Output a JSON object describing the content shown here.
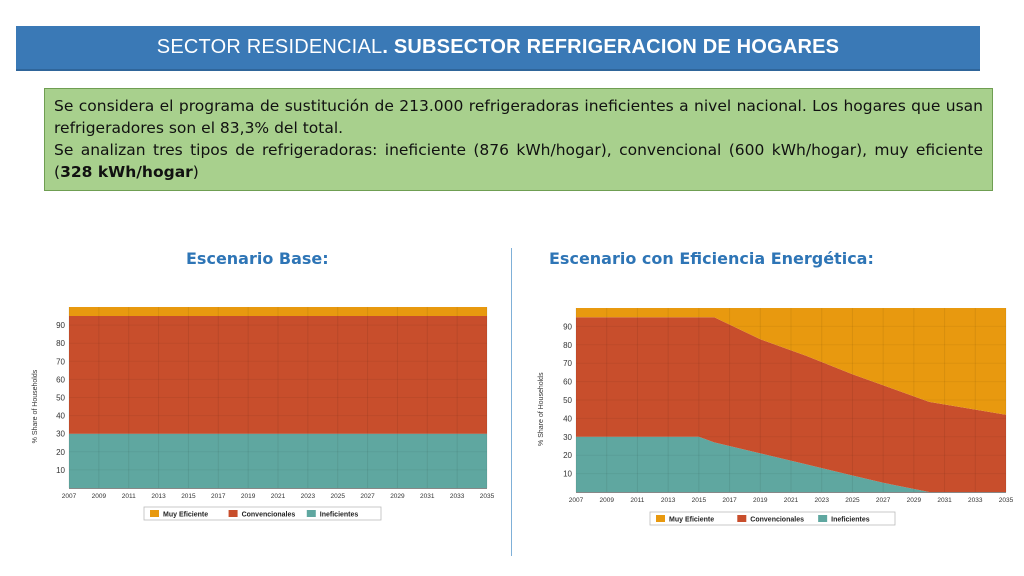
{
  "title": {
    "normal": "SECTOR RESIDENCIAL",
    "bold": ". SUBSECTOR REFRIGERACION DE HOGARES"
  },
  "info": {
    "p1": "Se considera el programa de sustitución de 213.000 refrigeradoras ineficientes a nivel nacional. Los hogares que usan refrigeradores son el 83,3% del total.",
    "p2_pre": "Se analizan tres tipos de refrigeradoras: ineficiente (876 kWh/hogar), convencional (600 kWh/hogar), muy eficiente (",
    "p2_bold": "328 kWh/hogar",
    "p2_post": ")"
  },
  "colors": {
    "muy_eficiente": "#e8990f",
    "convencionales": "#c84e2c",
    "ineficientes": "#5fa7a0",
    "title_bar": "#3a79b6",
    "info_box": "#a8d08d",
    "heading": "#2e75b6"
  },
  "chart_data": [
    {
      "type": "area",
      "title": "Escenario Base:",
      "ylabel": "% Share of Households",
      "xlabel": "",
      "x_ticks": [
        "2007",
        "2009",
        "2011",
        "2013",
        "2015",
        "2017",
        "2019",
        "2021",
        "2023",
        "2025",
        "2027",
        "2029",
        "2031",
        "2033",
        "2035"
      ],
      "y_ticks": [
        "10",
        "20",
        "30",
        "40",
        "50",
        "60",
        "70",
        "80",
        "90"
      ],
      "xlim": [
        2007,
        2035
      ],
      "ylim": [
        0,
        100
      ],
      "grid": true,
      "legend": "bottom",
      "series": [
        {
          "name": "Ineficientes",
          "color": "#5fa7a0",
          "x": [
            2007,
            2035
          ],
          "values": [
            30,
            30
          ]
        },
        {
          "name": "Convencionales",
          "color": "#c84e2c",
          "x": [
            2007,
            2035
          ],
          "values": [
            65,
            65
          ]
        },
        {
          "name": "Muy Eficiente",
          "color": "#e8990f",
          "x": [
            2007,
            2035
          ],
          "values": [
            5,
            5
          ]
        }
      ]
    },
    {
      "type": "area",
      "title": "Escenario con Eficiencia Energética:",
      "ylabel": "% Share of Households",
      "xlabel": "",
      "x_ticks": [
        "2007",
        "2009",
        "2011",
        "2013",
        "2015",
        "2017",
        "2019",
        "2021",
        "2023",
        "2025",
        "2027",
        "2029",
        "2031",
        "2033",
        "2035"
      ],
      "y_ticks": [
        "10",
        "20",
        "30",
        "40",
        "50",
        "60",
        "70",
        "80",
        "90"
      ],
      "xlim": [
        2007,
        2035
      ],
      "ylim": [
        0,
        100
      ],
      "grid": true,
      "legend": "bottom",
      "series": [
        {
          "name": "Ineficientes",
          "color": "#5fa7a0",
          "x": [
            2007,
            2015,
            2016,
            2019,
            2022,
            2025,
            2027,
            2030,
            2035
          ],
          "values": [
            30,
            30,
            27,
            21,
            15,
            9,
            5,
            0,
            0
          ]
        },
        {
          "name": "Convencionales",
          "color": "#c84e2c",
          "x": [
            2007,
            2015,
            2016,
            2019,
            2022,
            2025,
            2027,
            2030,
            2035
          ],
          "values": [
            65,
            65,
            68,
            62,
            59,
            55,
            53,
            49,
            42
          ]
        },
        {
          "name": "Muy Eficiente",
          "color": "#e8990f",
          "x": [
            2007,
            2015,
            2016,
            2019,
            2022,
            2025,
            2027,
            2030,
            2035
          ],
          "values": [
            5,
            5,
            5,
            17,
            26,
            36,
            42,
            51,
            58
          ]
        }
      ]
    }
  ]
}
